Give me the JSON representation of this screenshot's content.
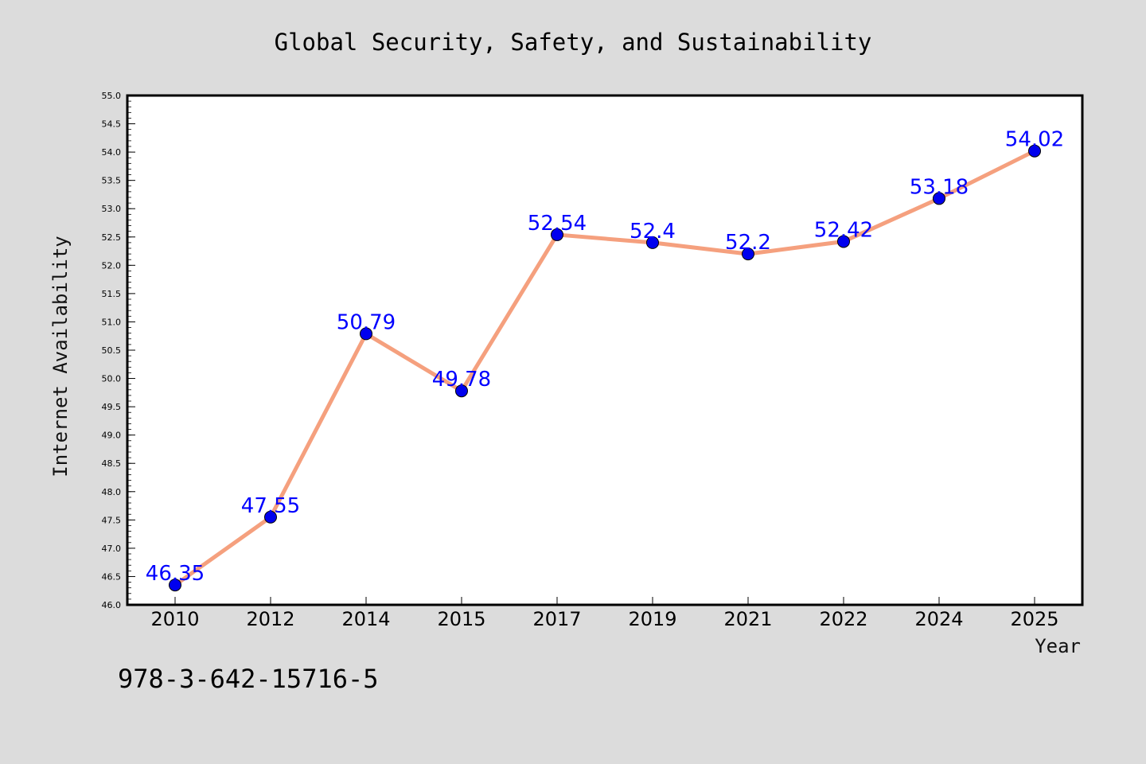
{
  "chart_data": {
    "type": "line",
    "title": "Global Security, Safety, and Sustainability",
    "xlabel": "Year",
    "ylabel": "Internet Availability",
    "categories": [
      "2010",
      "2012",
      "2014",
      "2015",
      "2017",
      "2019",
      "2021",
      "2022",
      "2024",
      "2025"
    ],
    "series": [
      {
        "values": [
          46.35,
          47.55,
          50.79,
          49.78,
          52.54,
          52.4,
          52.2,
          52.42,
          53.18,
          54.02
        ],
        "data_labels": [
          "46.35",
          "47.55",
          "50.79",
          "49.78",
          "52.54",
          "52.4",
          "52.2",
          "52.42",
          "53.18",
          "54.02"
        ],
        "line_color": "#f5a07e",
        "marker_color": "#0000ee"
      }
    ],
    "ylim": [
      46.0,
      55.0
    ],
    "yticks": [
      "46.0",
      "46.5",
      "47.0",
      "47.5",
      "48.0",
      "48.5",
      "49.0",
      "49.5",
      "50.0",
      "50.5",
      "51.0",
      "51.5",
      "52.0",
      "52.5",
      "53.0",
      "53.5",
      "54.0",
      "54.5",
      "55.0"
    ],
    "grid": false,
    "legend": "none"
  },
  "annotation": "978-3-642-15716-5",
  "colors": {
    "background": "#dcdcdc",
    "plot_background": "#ffffff",
    "data_label": "#0000ff"
  }
}
